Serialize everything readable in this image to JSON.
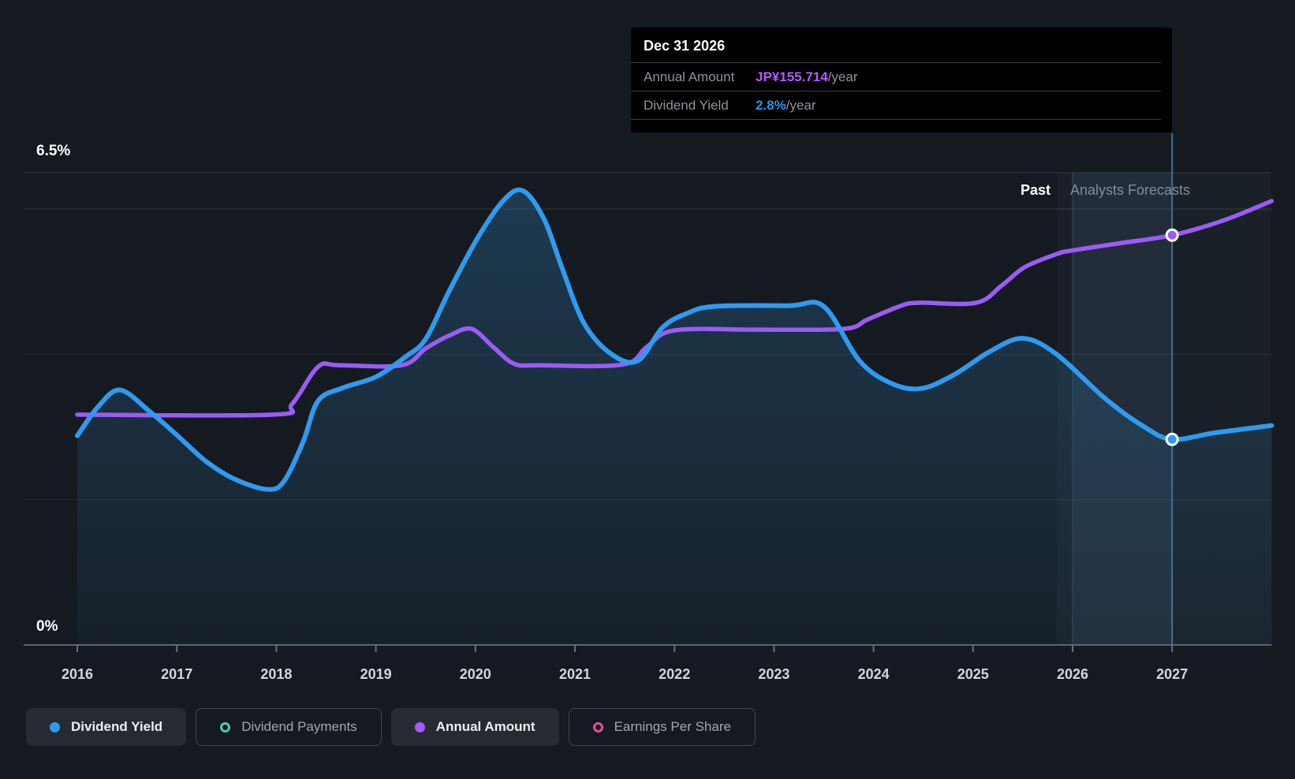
{
  "tooltip": {
    "title": "Dec 31 2026",
    "rows": [
      {
        "label": "Annual Amount",
        "value": "JP¥155.714",
        "suffix": "/year",
        "value_color": "#b45bff"
      },
      {
        "label": "Dividend Yield",
        "value": "2.8%",
        "suffix": "/year",
        "value_color": "#2196f3"
      }
    ]
  },
  "axis": {
    "y_max_label": "6.5%",
    "y_min_label": "0%",
    "x_labels": [
      "2016",
      "2017",
      "2018",
      "2019",
      "2020",
      "2021",
      "2022",
      "2023",
      "2024",
      "2025",
      "2026",
      "2027"
    ]
  },
  "annotations": {
    "past": "Past",
    "forecast": "Analysts Forecasts"
  },
  "legend": {
    "items": [
      {
        "label": "Dividend Yield",
        "color": "#2e9bf0",
        "style": "filled",
        "active": true
      },
      {
        "label": "Dividend Payments",
        "color": "#53c9b1",
        "style": "ring",
        "active": false
      },
      {
        "label": "Annual Amount",
        "color": "#a55cf7",
        "style": "filled",
        "active": true
      },
      {
        "label": "Earnings Per Share",
        "color": "#e0519e",
        "style": "ring",
        "active": false
      }
    ]
  },
  "chart_data": {
    "type": "area",
    "title": "Dividend yield and payments history with analysts forecasts",
    "x_range": [
      2016,
      2028
    ],
    "y_axis": {
      "min": 0,
      "max": 6.5,
      "unit": "%",
      "gridlines": [
        6.5,
        6,
        4,
        2
      ]
    },
    "grid": true,
    "legend_position": "bottom",
    "past_forecast_divider_x": 2025.84,
    "highlight_band": {
      "x_start": 2026.0,
      "x_end": 2027.0
    },
    "crosshair_x": 2027.0,
    "series": [
      {
        "name": "Dividend Yield",
        "color": "#2e9bf0",
        "fill": true,
        "points": [
          [
            2016.0,
            2.88
          ],
          [
            2016.21,
            3.28
          ],
          [
            2016.43,
            3.51
          ],
          [
            2016.73,
            3.21
          ],
          [
            2017.0,
            2.89
          ],
          [
            2017.3,
            2.52
          ],
          [
            2017.6,
            2.27
          ],
          [
            2017.92,
            2.14
          ],
          [
            2018.08,
            2.26
          ],
          [
            2018.27,
            2.8
          ],
          [
            2018.42,
            3.36
          ],
          [
            2018.67,
            3.54
          ],
          [
            2019.0,
            3.69
          ],
          [
            2019.3,
            3.97
          ],
          [
            2019.5,
            4.21
          ],
          [
            2019.74,
            4.88
          ],
          [
            2020.03,
            5.62
          ],
          [
            2020.29,
            6.13
          ],
          [
            2020.48,
            6.25
          ],
          [
            2020.69,
            5.86
          ],
          [
            2020.87,
            5.19
          ],
          [
            2021.09,
            4.43
          ],
          [
            2021.36,
            4.01
          ],
          [
            2021.63,
            3.91
          ],
          [
            2021.88,
            4.37
          ],
          [
            2022.12,
            4.56
          ],
          [
            2022.4,
            4.66
          ],
          [
            2023.15,
            4.67
          ],
          [
            2023.5,
            4.66
          ],
          [
            2023.86,
            3.91
          ],
          [
            2024.18,
            3.6
          ],
          [
            2024.48,
            3.53
          ],
          [
            2024.81,
            3.72
          ],
          [
            2025.17,
            4.04
          ],
          [
            2025.5,
            4.22
          ],
          [
            2025.84,
            4.0
          ],
          [
            2026.32,
            3.4
          ],
          [
            2026.71,
            3.01
          ],
          [
            2027.0,
            2.83
          ],
          [
            2027.43,
            2.92
          ],
          [
            2028.0,
            3.02
          ]
        ]
      },
      {
        "name": "Annual Amount",
        "color": "#9a5cf5",
        "fill": false,
        "points": [
          [
            2016.0,
            3.17
          ],
          [
            2017.96,
            3.17
          ],
          [
            2018.16,
            3.32
          ],
          [
            2018.42,
            3.83
          ],
          [
            2018.63,
            3.85
          ],
          [
            2019.26,
            3.85
          ],
          [
            2019.5,
            4.08
          ],
          [
            2019.74,
            4.26
          ],
          [
            2019.96,
            4.35
          ],
          [
            2020.18,
            4.1
          ],
          [
            2020.39,
            3.87
          ],
          [
            2020.65,
            3.85
          ],
          [
            2021.48,
            3.86
          ],
          [
            2021.72,
            4.1
          ],
          [
            2022.0,
            4.33
          ],
          [
            2022.83,
            4.34
          ],
          [
            2023.7,
            4.35
          ],
          [
            2023.94,
            4.48
          ],
          [
            2024.26,
            4.66
          ],
          [
            2024.45,
            4.71
          ],
          [
            2025.03,
            4.71
          ],
          [
            2025.29,
            4.95
          ],
          [
            2025.52,
            5.2
          ],
          [
            2025.84,
            5.38
          ],
          [
            2026.0,
            5.43
          ],
          [
            2026.48,
            5.53
          ],
          [
            2027.0,
            5.64
          ],
          [
            2027.51,
            5.84
          ],
          [
            2028.0,
            6.11
          ]
        ]
      }
    ],
    "markers": [
      {
        "series": "Dividend Yield",
        "x": 2027.0,
        "y": 2.83
      },
      {
        "series": "Annual Amount",
        "x": 2027.0,
        "y": 5.64
      }
    ]
  }
}
